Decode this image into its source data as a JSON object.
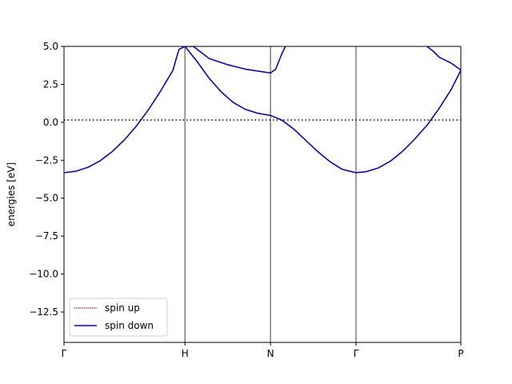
{
  "chart_data": {
    "type": "line",
    "title": "",
    "xlabel": "",
    "ylabel": "energies [eV]",
    "ylim": [
      -14.5,
      5.0
    ],
    "x_ticks": [
      "Γ",
      "H",
      "N",
      "Γ",
      "P"
    ],
    "x_tick_positions": [
      0.0,
      1.0,
      1.7071,
      2.4142,
      3.2802
    ],
    "y_ticks": [
      5.0,
      2.5,
      0.0,
      -2.5,
      -5.0,
      -7.5,
      -10.0,
      -12.5
    ],
    "y_tick_labels": [
      "5.0",
      "2.5",
      "0.0",
      "−2.5",
      "−5.0",
      "−7.5",
      "−10.0",
      "−12.5"
    ],
    "fermi_level": 0.15,
    "vertical_lines_at": [
      1.0,
      1.7071,
      2.4142
    ],
    "legend": {
      "position": "lower-left",
      "entries": [
        "spin up",
        "spin down"
      ]
    },
    "colors": {
      "spin_up": "#8b0000",
      "spin_down": "#0000cc",
      "kpath_lines": "#808080",
      "fermi_line": "#000000"
    },
    "series": [
      {
        "name": "spin up",
        "style": "dotted",
        "bands": [
          [
            [
              0.0,
              -3.32
            ],
            [
              0.1,
              -3.22
            ],
            [
              0.2,
              -2.96
            ],
            [
              0.3,
              -2.53
            ],
            [
              0.4,
              -1.92
            ],
            [
              0.5,
              -1.15
            ],
            [
              0.6,
              -0.23
            ],
            [
              0.7,
              0.85
            ],
            [
              0.8,
              2.08
            ],
            [
              0.9,
              3.42
            ],
            [
              0.95,
              4.8
            ],
            [
              1.0,
              5.0
            ]
          ],
          [
            [
              1.0,
              5.0
            ],
            [
              1.07,
              5.0
            ],
            [
              1.2,
              4.2
            ],
            [
              1.35,
              3.8
            ],
            [
              1.5,
              3.5
            ],
            [
              1.7071,
              3.25
            ],
            [
              1.75,
              3.5
            ],
            [
              1.8,
              4.5
            ],
            [
              1.83,
              5.0
            ]
          ],
          [
            [
              1.0,
              5.0
            ],
            [
              1.1,
              4.0
            ],
            [
              1.2,
              2.9
            ],
            [
              1.3,
              2.0
            ],
            [
              1.4,
              1.3
            ],
            [
              1.5,
              0.85
            ],
            [
              1.6,
              0.6
            ],
            [
              1.7071,
              0.45
            ],
            [
              1.8,
              0.15
            ],
            [
              1.9,
              -0.45
            ],
            [
              2.0,
              -1.2
            ],
            [
              2.1,
              -1.95
            ],
            [
              2.2,
              -2.6
            ],
            [
              2.3,
              -3.1
            ],
            [
              2.4142,
              -3.32
            ],
            [
              2.5,
              -3.25
            ],
            [
              2.6,
              -3.0
            ],
            [
              2.7,
              -2.55
            ],
            [
              2.8,
              -1.9
            ],
            [
              2.9,
              -1.1
            ],
            [
              3.0,
              -0.2
            ],
            [
              3.1,
              0.9
            ],
            [
              3.2,
              2.15
            ],
            [
              3.2802,
              3.42
            ]
          ],
          [
            [
              3.0,
              5.0
            ],
            [
              3.05,
              4.7
            ],
            [
              3.1,
              4.3
            ],
            [
              3.2,
              3.9
            ],
            [
              3.2802,
              3.45
            ]
          ]
        ]
      },
      {
        "name": "spin down",
        "style": "solid",
        "bands": [
          [
            [
              0.0,
              -3.32
            ],
            [
              0.1,
              -3.22
            ],
            [
              0.2,
              -2.96
            ],
            [
              0.3,
              -2.53
            ],
            [
              0.4,
              -1.92
            ],
            [
              0.5,
              -1.15
            ],
            [
              0.6,
              -0.23
            ],
            [
              0.7,
              0.85
            ],
            [
              0.8,
              2.08
            ],
            [
              0.9,
              3.42
            ],
            [
              0.95,
              4.8
            ],
            [
              1.0,
              5.0
            ]
          ],
          [
            [
              1.0,
              5.0
            ],
            [
              1.07,
              5.0
            ],
            [
              1.2,
              4.2
            ],
            [
              1.35,
              3.8
            ],
            [
              1.5,
              3.5
            ],
            [
              1.7071,
              3.25
            ],
            [
              1.75,
              3.5
            ],
            [
              1.8,
              4.5
            ],
            [
              1.83,
              5.0
            ]
          ],
          [
            [
              1.0,
              5.0
            ],
            [
              1.1,
              4.0
            ],
            [
              1.2,
              2.9
            ],
            [
              1.3,
              2.0
            ],
            [
              1.4,
              1.3
            ],
            [
              1.5,
              0.85
            ],
            [
              1.6,
              0.6
            ],
            [
              1.7071,
              0.45
            ],
            [
              1.8,
              0.15
            ],
            [
              1.9,
              -0.45
            ],
            [
              2.0,
              -1.2
            ],
            [
              2.1,
              -1.95
            ],
            [
              2.2,
              -2.6
            ],
            [
              2.3,
              -3.1
            ],
            [
              2.4142,
              -3.32
            ],
            [
              2.5,
              -3.25
            ],
            [
              2.6,
              -3.0
            ],
            [
              2.7,
              -2.55
            ],
            [
              2.8,
              -1.9
            ],
            [
              2.9,
              -1.1
            ],
            [
              3.0,
              -0.2
            ],
            [
              3.1,
              0.9
            ],
            [
              3.2,
              2.15
            ],
            [
              3.2802,
              3.42
            ]
          ],
          [
            [
              3.0,
              5.0
            ],
            [
              3.05,
              4.7
            ],
            [
              3.1,
              4.3
            ],
            [
              3.2,
              3.9
            ],
            [
              3.2802,
              3.45
            ]
          ]
        ]
      }
    ]
  }
}
